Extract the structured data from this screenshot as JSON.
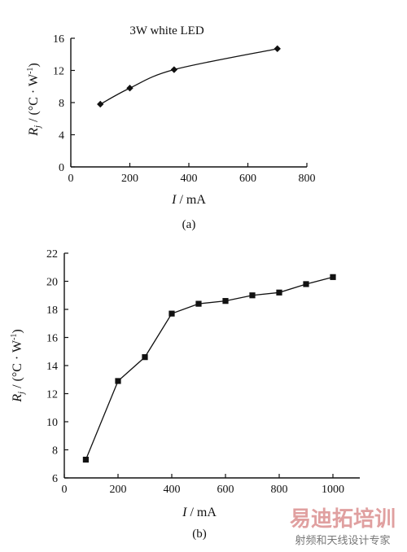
{
  "chart_data": [
    {
      "type": "line",
      "panel": "(a)",
      "title": "3W white LED",
      "xlabel": "I / mA",
      "ylabel": "R_j / (°C · W⁻¹)",
      "xlim": [
        0,
        800
      ],
      "ylim": [
        0,
        16
      ],
      "xticks": [
        0,
        200,
        400,
        600,
        800
      ],
      "yticks": [
        0,
        4,
        8,
        12,
        16
      ],
      "marker": "diamond",
      "smooth": true,
      "series": [
        {
          "x": [
            100,
            200,
            350,
            700
          ],
          "y": [
            7.8,
            9.8,
            12.1,
            14.7
          ]
        }
      ]
    },
    {
      "type": "line",
      "panel": "(b)",
      "title": "",
      "xlabel": "I / mA",
      "ylabel": "R_j / (°C · W⁻¹)",
      "xlim": [
        0,
        1100
      ],
      "ylim": [
        6,
        22
      ],
      "xticks": [
        0,
        200,
        400,
        600,
        800,
        1000
      ],
      "yticks": [
        6,
        8,
        10,
        12,
        14,
        16,
        18,
        20,
        22
      ],
      "marker": "square",
      "smooth": false,
      "series": [
        {
          "x": [
            80,
            200,
            300,
            400,
            500,
            600,
            700,
            800,
            900,
            1000
          ],
          "y": [
            7.3,
            12.9,
            14.6,
            17.7,
            18.4,
            18.6,
            19.0,
            19.2,
            19.8,
            20.3
          ]
        }
      ]
    }
  ],
  "watermark": {
    "main": "易迪拓培训",
    "sub": "射频和天线设计专家"
  }
}
